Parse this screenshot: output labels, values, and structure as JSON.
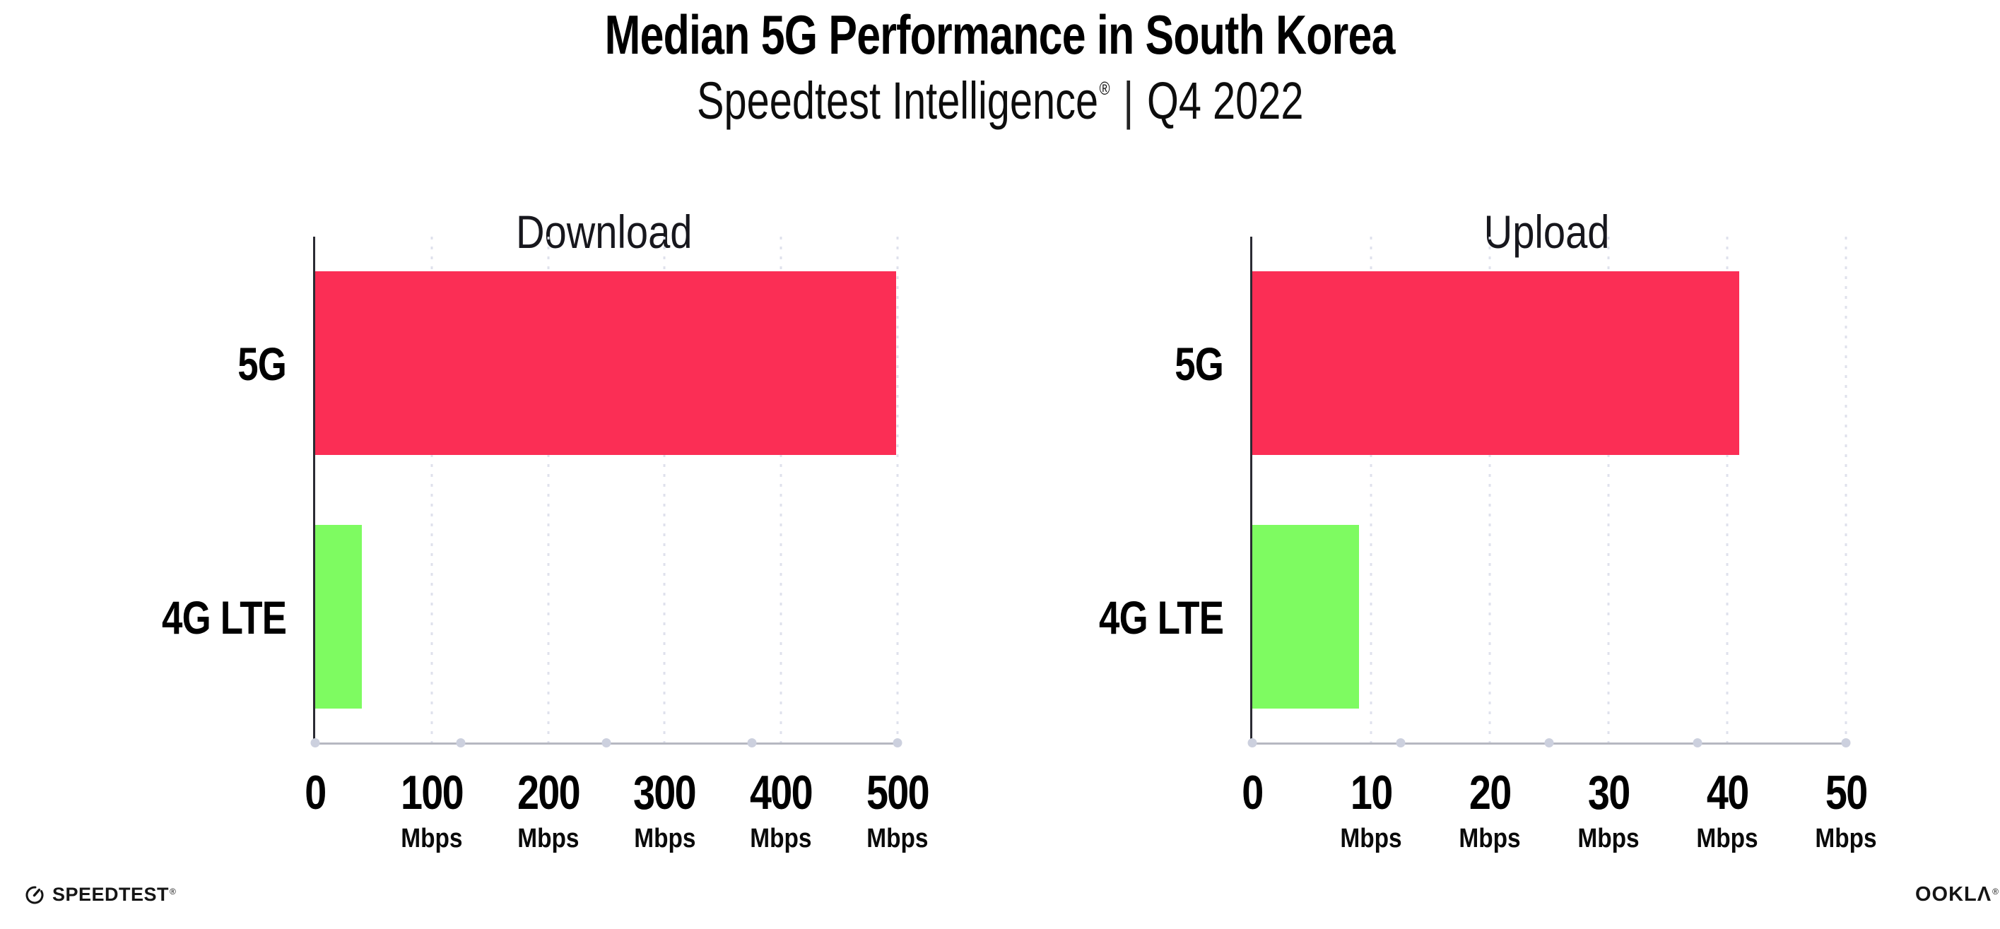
{
  "header": {
    "title": "Median 5G Performance in South Korea",
    "subtitle": {
      "brand": "Speedtest Intelligence",
      "mark": "®",
      "divider": "|",
      "period": "Q4 2022"
    }
  },
  "chart_data": [
    {
      "type": "bar",
      "orientation": "horizontal",
      "title": "Download",
      "categories": [
        "5G",
        "4G LTE"
      ],
      "values": [
        499,
        40
      ],
      "unit": "Mbps",
      "xlabel": "",
      "ylabel": "",
      "xlim": [
        0,
        500
      ],
      "ticks": [
        0,
        100,
        200,
        300,
        400,
        500
      ],
      "bar_colors": [
        "#fb2e55",
        "#7efb61"
      ],
      "grid": "dotted-vertical",
      "legend": "none"
    },
    {
      "type": "bar",
      "orientation": "horizontal",
      "title": "Upload",
      "categories": [
        "5G",
        "4G LTE"
      ],
      "values": [
        41,
        9
      ],
      "unit": "Mbps",
      "xlabel": "",
      "ylabel": "",
      "xlim": [
        0,
        50
      ],
      "ticks": [
        0,
        10,
        20,
        30,
        40,
        50
      ],
      "bar_colors": [
        "#fb2e55",
        "#7efb61"
      ],
      "grid": "dotted-vertical",
      "legend": "none"
    }
  ],
  "footer": {
    "speedtest_label": "SPEEDTEST",
    "speedtest_mark": "®",
    "ookla_label": "OOKLΛ",
    "ookla_mark": "®"
  },
  "colors": {
    "bar_5g": "#fb2e55",
    "bar_4g_lte": "#7efb61",
    "text": "#000000",
    "axis_spine": "#2b2b33",
    "axis_baseline": "#b6b8c1",
    "gridline": "#dfe1ec",
    "background": "#ffffff"
  }
}
